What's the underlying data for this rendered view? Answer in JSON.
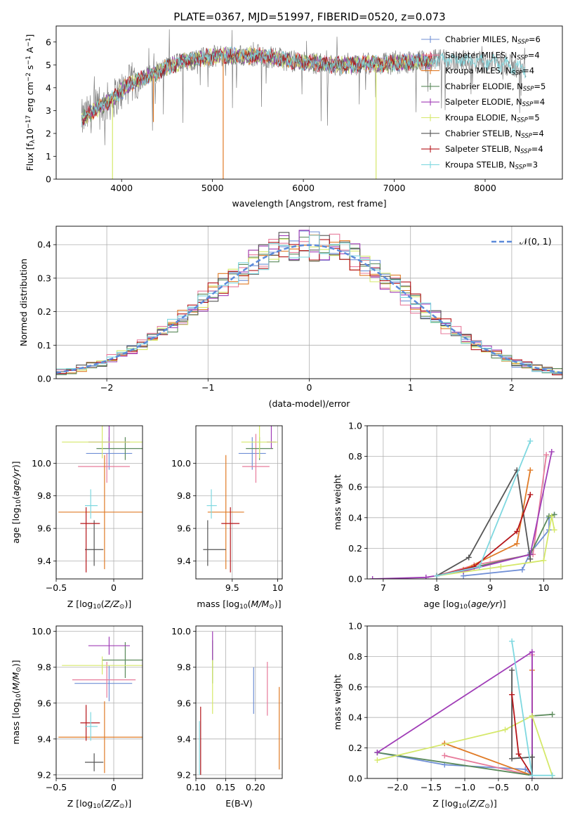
{
  "figure": {
    "title": "PLATE=0367, MJD=51997, FIBERID=0520, z=0.073"
  },
  "legend_entries": [
    {
      "label": "Chabrier MILES, N",
      "sub": "SSP",
      "suffix": "=6",
      "color": "#6f8fd6"
    },
    {
      "label": "Salpeter MILES, N",
      "sub": "SSP",
      "suffix": "=4",
      "color": "#e77b9b"
    },
    {
      "label": "Kroupa MILES, N",
      "sub": "SSP",
      "suffix": "=4",
      "color": "#e07b27"
    },
    {
      "label": "Chabrier ELODIE, N",
      "sub": "SSP",
      "suffix": "=5",
      "color": "#5b8a5b"
    },
    {
      "label": "Salpeter ELODIE, N",
      "sub": "SSP",
      "suffix": "=4",
      "color": "#a03db7"
    },
    {
      "label": "Kroupa ELODIE, N",
      "sub": "SSP",
      "suffix": "=5",
      "color": "#d5e86a"
    },
    {
      "label": "Chabrier STELIB, N",
      "sub": "SSP",
      "suffix": "=4",
      "color": "#555555"
    },
    {
      "label": "Salpeter STELIB, N",
      "sub": "SSP",
      "suffix": "=4",
      "color": "#b5151a"
    },
    {
      "label": "Kroupa STELIB, N",
      "sub": "SSP",
      "suffix": "=3",
      "color": "#7fd8e0"
    }
  ],
  "chart_data": [
    {
      "id": "spectrum",
      "type": "line",
      "xlabel": "wavelength [Angstrom, rest frame]",
      "ylabel": "Flux [f",
      "ylabel_parts": {
        "lambda_sub": "λ",
        "mid": "10",
        "exp1": "−17",
        "unit": " erg cm",
        "exp2": "−2",
        "unit2": " s",
        "exp3": "−1",
        "unit3": " A",
        "exp4": "−1",
        "close": "]"
      },
      "xlim": [
        3280,
        8850
      ],
      "ylim": [
        0,
        6.7
      ],
      "xticks": [
        4000,
        5000,
        6000,
        7000,
        8000
      ],
      "yticks": [
        0,
        1,
        2,
        3,
        4,
        5,
        6
      ],
      "continuum_points": [
        [
          3560,
          2.6
        ],
        [
          3700,
          3.0
        ],
        [
          3900,
          3.5
        ],
        [
          4100,
          4.2
        ],
        [
          4300,
          4.5
        ],
        [
          4500,
          4.9
        ],
        [
          4700,
          5.2
        ],
        [
          4900,
          5.3
        ],
        [
          5100,
          5.4
        ],
        [
          5300,
          5.4
        ],
        [
          5500,
          5.4
        ],
        [
          5700,
          5.3
        ],
        [
          5900,
          5.15
        ],
        [
          6100,
          5.1
        ],
        [
          6300,
          5.0
        ],
        [
          6500,
          5.0
        ],
        [
          6700,
          5.05
        ],
        [
          6900,
          5.05
        ],
        [
          7100,
          5.1
        ],
        [
          7300,
          5.15
        ],
        [
          7500,
          5.2
        ],
        [
          7700,
          5.2
        ],
        [
          7900,
          5.15
        ],
        [
          8100,
          5.1
        ],
        [
          8300,
          4.95
        ],
        [
          8450,
          4.75
        ]
      ],
      "observed_color": "#808080",
      "model_range": [
        3560,
        7420
      ],
      "model_range_cyan": [
        3560,
        8450
      ]
    },
    {
      "id": "residuals",
      "type": "histogram",
      "xlabel": "(data-model)/error",
      "ylabel": "Normed distribution",
      "xlim": [
        -2.5,
        2.5
      ],
      "ylim": [
        0,
        0.455
      ],
      "xticks": [
        -2,
        -1,
        0,
        1,
        2
      ],
      "yticks": [
        0.0,
        0.1,
        0.2,
        0.3,
        0.4
      ],
      "bin_width": 0.1,
      "legend": "𝒩(0, 1)",
      "gaussian_color": "#5b8ad9"
    },
    {
      "id": "age-vs-z",
      "type": "errorbar",
      "xlabel": "Z [log",
      "xlabel_parts": {
        "sub": "10",
        "body": "(Z/Z",
        "sub2": "⊙",
        "close": ")]"
      },
      "ylabel": "age  [log",
      "ylabel_parts": {
        "sub": "10",
        "body": "(age/yr)]"
      },
      "xlim": [
        -0.5,
        0.25
      ],
      "ylim": [
        9.29,
        10.23
      ],
      "xticks": [
        -0.5,
        0.0
      ],
      "yticks": [
        9.4,
        9.6,
        9.8,
        10.0
      ],
      "points": [
        {
          "x": -0.04,
          "y": 10.06,
          "xerr": [
            0.2,
            0.2
          ],
          "yerr": [
            0.1,
            0.1
          ],
          "color": "#6f8fd6"
        },
        {
          "x": -0.06,
          "y": 9.98,
          "xerr": [
            0.25,
            0.2
          ],
          "yerr": [
            0.1,
            0.08
          ],
          "color": "#e77b9b"
        },
        {
          "x": -0.08,
          "y": 9.7,
          "xerr": [
            0.4,
            0.35
          ],
          "yerr": [
            0.35,
            0.35
          ],
          "color": "#e07b27"
        },
        {
          "x": 0.1,
          "y": 10.09,
          "xerr": [
            0.25,
            0.15
          ],
          "yerr": [
            0.07,
            0.07
          ],
          "color": "#5b8a5b"
        },
        {
          "x": -0.04,
          "y": 10.13,
          "xerr": [
            0.18,
            0.18
          ],
          "yerr": [
            0.04,
            0.2
          ],
          "color": "#a03db7"
        },
        {
          "x": -0.1,
          "y": 10.13,
          "xerr": [
            0.35,
            0.35
          ],
          "yerr": [
            0.1,
            0.1
          ],
          "color": "#d5e86a"
        },
        {
          "x": -0.17,
          "y": 9.47,
          "xerr": [
            0.08,
            0.08
          ],
          "yerr": [
            0.1,
            0.18
          ],
          "color": "#555555"
        },
        {
          "x": -0.24,
          "y": 9.63,
          "xerr": [
            0.05,
            0.12
          ],
          "yerr": [
            0.3,
            0.1
          ],
          "color": "#b5151a"
        },
        {
          "x": -0.2,
          "y": 9.74,
          "xerr": [
            0.05,
            0.06
          ],
          "yerr": [
            0.08,
            0.1
          ],
          "color": "#7fd8e0"
        }
      ]
    },
    {
      "id": "age-vs-mass",
      "type": "errorbar",
      "xlabel": "mass [log",
      "xlabel_parts": {
        "sub": "10",
        "body": "(M/M",
        "sub2": "⊙",
        "close": ")]"
      },
      "xlim": [
        9.1,
        10.05
      ],
      "ylim": [
        9.29,
        10.23
      ],
      "xticks": [
        9.5,
        10.0
      ],
      "yticks": [
        9.4,
        9.6,
        9.8,
        10.0
      ],
      "points": [
        {
          "x": 9.72,
          "y": 10.06,
          "xerr": [
            0.15,
            0.15
          ],
          "yerr": [
            0.1,
            0.1
          ],
          "color": "#6f8fd6"
        },
        {
          "x": 9.76,
          "y": 9.98,
          "xerr": [
            0.15,
            0.15
          ],
          "yerr": [
            0.1,
            0.2
          ],
          "color": "#e77b9b"
        },
        {
          "x": 9.43,
          "y": 9.7,
          "xerr": [
            0.2,
            0.2
          ],
          "yerr": [
            0.35,
            0.35
          ],
          "color": "#e07b27"
        },
        {
          "x": 9.8,
          "y": 10.09,
          "xerr": [
            0.15,
            0.15
          ],
          "yerr": [
            0.07,
            0.07
          ],
          "color": "#5b8a5b"
        },
        {
          "x": 9.93,
          "y": 10.13,
          "xerr": [
            0.05,
            0.05
          ],
          "yerr": [
            0.04,
            0.36
          ],
          "color": "#a03db7"
        },
        {
          "x": 9.8,
          "y": 10.13,
          "xerr": [
            0.2,
            0.2
          ],
          "yerr": [
            0.1,
            0.1
          ],
          "color": "#d5e86a"
        },
        {
          "x": 9.23,
          "y": 9.47,
          "xerr": [
            0.05,
            0.2
          ],
          "yerr": [
            0.1,
            0.18
          ],
          "color": "#555555"
        },
        {
          "x": 9.48,
          "y": 9.63,
          "xerr": [
            0.1,
            0.1
          ],
          "yerr": [
            0.3,
            0.1
          ],
          "color": "#b5151a"
        },
        {
          "x": 9.27,
          "y": 9.74,
          "xerr": [
            0.05,
            0.06
          ],
          "yerr": [
            0.08,
            0.1
          ],
          "color": "#7fd8e0"
        }
      ]
    },
    {
      "id": "massweight-vs-age",
      "type": "line",
      "xlabel": "age  [log",
      "xlabel_parts": {
        "sub": "10",
        "body": "(age/yr)]"
      },
      "ylabel": "mass weight",
      "xlim": [
        6.7,
        10.35
      ],
      "ylim": [
        0,
        1.0
      ],
      "xticks": [
        7,
        8,
        9,
        10
      ],
      "yticks": [
        0.0,
        0.2,
        0.4,
        0.6,
        0.8,
        1.0
      ],
      "series": [
        {
          "color": "#6f8fd6",
          "x": [
            8.5,
            9.6,
            9.75,
            10.1,
            10.1,
            10.2
          ],
          "y": [
            0.02,
            0.06,
            0.17,
            0.32,
            0.4,
            0.42
          ]
        },
        {
          "color": "#e77b9b",
          "x": [
            8.0,
            8.7,
            9.8,
            10.05
          ],
          "y": [
            0.02,
            0.09,
            0.16,
            0.81
          ]
        },
        {
          "color": "#e07b27",
          "x": [
            8.0,
            8.5,
            9.5,
            9.75
          ],
          "y": [
            0.02,
            0.06,
            0.23,
            0.71
          ]
        },
        {
          "color": "#5b8a5b",
          "x": [
            8.0,
            9.75,
            10.1,
            10.2
          ],
          "y": [
            0.02,
            0.16,
            0.41,
            0.42
          ]
        },
        {
          "color": "#a03db7",
          "x": [
            6.8,
            7.8,
            8.5,
            9.75,
            10.15
          ],
          "y": [
            0.0,
            0.01,
            0.05,
            0.16,
            0.83
          ]
        },
        {
          "color": "#d5e86a",
          "x": [
            8.0,
            9.2,
            10.0,
            10.15,
            10.2
          ],
          "y": [
            0.02,
            0.08,
            0.12,
            0.41,
            0.32
          ]
        },
        {
          "color": "#555555",
          "x": [
            8.0,
            8.6,
            9.5,
            9.75
          ],
          "y": [
            0.02,
            0.14,
            0.71,
            0.13
          ]
        },
        {
          "color": "#b5151a",
          "x": [
            8.0,
            8.7,
            9.5,
            9.75
          ],
          "y": [
            0.02,
            0.08,
            0.31,
            0.55
          ]
        },
        {
          "color": "#7fd8e0",
          "x": [
            8.0,
            8.8,
            9.75
          ],
          "y": [
            0.02,
            0.08,
            0.9
          ]
        }
      ]
    },
    {
      "id": "mass-vs-z",
      "type": "errorbar",
      "xlabel": "Z [log",
      "xlabel_parts": {
        "sub": "10",
        "body": "(Z/Z",
        "sub2": "⊙",
        "close": ")]"
      },
      "ylabel": "mass [log",
      "ylabel_parts": {
        "sub": "10",
        "body": "(M/M",
        "sub2": "⊙",
        "close": ")]"
      },
      "xlim": [
        -0.5,
        0.25
      ],
      "ylim": [
        9.18,
        10.03
      ],
      "xticks": [
        -0.5,
        0.0
      ],
      "yticks": [
        9.2,
        9.4,
        9.6,
        9.8,
        10.0
      ],
      "points": [
        {
          "x": -0.04,
          "y": 9.71,
          "xerr": [
            0.3,
            0.2
          ],
          "yerr": [
            0.1,
            0.1
          ],
          "color": "#6f8fd6"
        },
        {
          "x": -0.06,
          "y": 9.73,
          "xerr": [
            0.3,
            0.25
          ],
          "yerr": [
            0.1,
            0.1
          ],
          "color": "#e77b9b"
        },
        {
          "x": -0.08,
          "y": 9.41,
          "xerr": [
            0.4,
            0.35
          ],
          "yerr": [
            0.2,
            0.2
          ],
          "color": "#e07b27"
        },
        {
          "x": 0.1,
          "y": 9.84,
          "xerr": [
            0.2,
            0.15
          ],
          "yerr": [
            0.1,
            0.1
          ],
          "color": "#5b8a5b"
        },
        {
          "x": -0.04,
          "y": 9.92,
          "xerr": [
            0.18,
            0.18
          ],
          "yerr": [
            0.05,
            0.05
          ],
          "color": "#a03db7"
        },
        {
          "x": -0.1,
          "y": 9.81,
          "xerr": [
            0.35,
            0.35
          ],
          "yerr": [
            0.05,
            0.05
          ],
          "color": "#d5e86a"
        },
        {
          "x": -0.17,
          "y": 9.27,
          "xerr": [
            0.08,
            0.08
          ],
          "yerr": [
            0.05,
            0.05
          ],
          "color": "#555555"
        },
        {
          "x": -0.24,
          "y": 9.49,
          "xerr": [
            0.05,
            0.12
          ],
          "yerr": [
            0.1,
            0.1
          ],
          "color": "#b5151a"
        },
        {
          "x": -0.2,
          "y": 9.47,
          "xerr": [
            0.05,
            0.06
          ],
          "yerr": [
            0.08,
            0.08
          ],
          "color": "#7fd8e0"
        }
      ]
    },
    {
      "id": "mass-vs-ebv",
      "type": "errorbar",
      "xlabel": "E(B-V)",
      "xlim": [
        0.1,
        0.245
      ],
      "ylim": [
        9.18,
        10.03
      ],
      "xticks": [
        0.1,
        0.15,
        0.2
      ],
      "ytick_labels": [
        "0.10",
        "0.15",
        "0.20"
      ],
      "yticks": [
        9.2,
        9.4,
        9.6,
        9.8,
        10.0
      ],
      "points": [
        {
          "x": 0.197,
          "y": 9.67,
          "xerr": [
            0,
            0
          ],
          "yerr": [
            0.13,
            0.13
          ],
          "color": "#6f8fd6"
        },
        {
          "x": 0.22,
          "y": 9.68,
          "xerr": [
            0,
            0
          ],
          "yerr": [
            0.15,
            0.15
          ],
          "color": "#e77b9b"
        },
        {
          "x": 0.24,
          "y": 9.46,
          "xerr": [
            0,
            0
          ],
          "yerr": [
            0.23,
            0.23
          ],
          "color": "#e07b27"
        },
        {
          "x": 0.128,
          "y": 9.83,
          "xerr": [
            0,
            0
          ],
          "yerr": [
            0.12,
            0.12
          ],
          "color": "#5b8a5b"
        },
        {
          "x": 0.128,
          "y": 9.92,
          "xerr": [
            0,
            0
          ],
          "yerr": [
            0.08,
            0.08
          ],
          "color": "#a03db7"
        },
        {
          "x": 0.128,
          "y": 9.69,
          "xerr": [
            0,
            0
          ],
          "yerr": [
            0.15,
            0.15
          ],
          "color": "#d5e86a"
        },
        {
          "x": 0.108,
          "y": 9.39,
          "xerr": [
            0,
            0
          ],
          "yerr": [
            0.19,
            0.19
          ],
          "color": "#b5151a"
        },
        {
          "x": 0.106,
          "y": 9.35,
          "xerr": [
            0,
            0
          ],
          "yerr": [
            0.15,
            0.15
          ],
          "color": "#7fd8e0"
        }
      ]
    },
    {
      "id": "massweight-vs-z",
      "type": "line",
      "xlabel": "Z [log",
      "xlabel_parts": {
        "sub": "10",
        "body": "(Z/Z",
        "sub2": "⊙",
        "close": ")]"
      },
      "ylabel": "mass weight",
      "xlim": [
        -2.45,
        0.45
      ],
      "ylim": [
        0,
        1.0
      ],
      "xticks": [
        -2.0,
        -1.5,
        -1.0,
        -0.5,
        0.0
      ],
      "yticks": [
        0.0,
        0.2,
        0.4,
        0.6,
        0.8,
        1.0
      ],
      "series": [
        {
          "color": "#6f8fd6",
          "x": [
            -2.3,
            -1.3,
            -0.1,
            0.0
          ],
          "y": [
            0.17,
            0.09,
            0.06,
            0.02
          ]
        },
        {
          "color": "#e77b9b",
          "x": [
            -1.3,
            0.0,
            0.0
          ],
          "y": [
            0.15,
            0.02,
            0.81
          ]
        },
        {
          "color": "#e07b27",
          "x": [
            -1.3,
            0.0,
            0.0
          ],
          "y": [
            0.23,
            0.02,
            0.71
          ]
        },
        {
          "color": "#5b8a5b",
          "x": [
            -2.3,
            0.0,
            0.0,
            0.3
          ],
          "y": [
            0.17,
            0.02,
            0.41,
            0.42
          ]
        },
        {
          "color": "#a03db7",
          "x": [
            -2.3,
            0.0,
            0.0
          ],
          "y": [
            0.17,
            0.83,
            0.0
          ]
        },
        {
          "color": "#d5e86a",
          "x": [
            -2.3,
            -0.4,
            0.0,
            0.3,
            0.3
          ],
          "y": [
            0.12,
            0.32,
            0.41,
            0.02,
            0.02
          ]
        },
        {
          "color": "#555555",
          "x": [
            -0.3,
            -0.3,
            0.0,
            0.0
          ],
          "y": [
            0.71,
            0.13,
            0.14,
            0.02
          ]
        },
        {
          "color": "#b5151a",
          "x": [
            -0.3,
            -0.2,
            0.0
          ],
          "y": [
            0.55,
            0.16,
            0.02
          ]
        },
        {
          "color": "#7fd8e0",
          "x": [
            -0.3,
            0.0,
            0.3
          ],
          "y": [
            0.9,
            0.02,
            0.02
          ]
        }
      ]
    }
  ]
}
